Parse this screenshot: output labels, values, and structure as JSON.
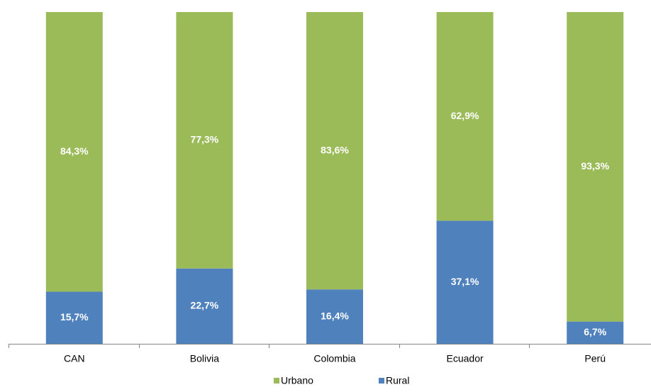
{
  "chart_data": {
    "type": "stacked_bar",
    "categories": [
      "CAN",
      "Bolivia",
      "Colombia",
      "Ecuador",
      "Perú"
    ],
    "series": [
      {
        "name": "Urbano",
        "color": "#9bbb59",
        "values": [
          84.3,
          77.3,
          83.6,
          62.9,
          93.3
        ],
        "value_labels": [
          "84,3%",
          "77,3%",
          "83,6%",
          "62,9%",
          "93,3%"
        ]
      },
      {
        "name": "Rural",
        "color": "#4f81bd",
        "values": [
          15.7,
          22.7,
          16.4,
          37.1,
          6.7
        ],
        "value_labels": [
          "15,7%",
          "22,7%",
          "16,4%",
          "37,1%",
          "6,7%"
        ]
      }
    ],
    "legend": "bottom"
  }
}
